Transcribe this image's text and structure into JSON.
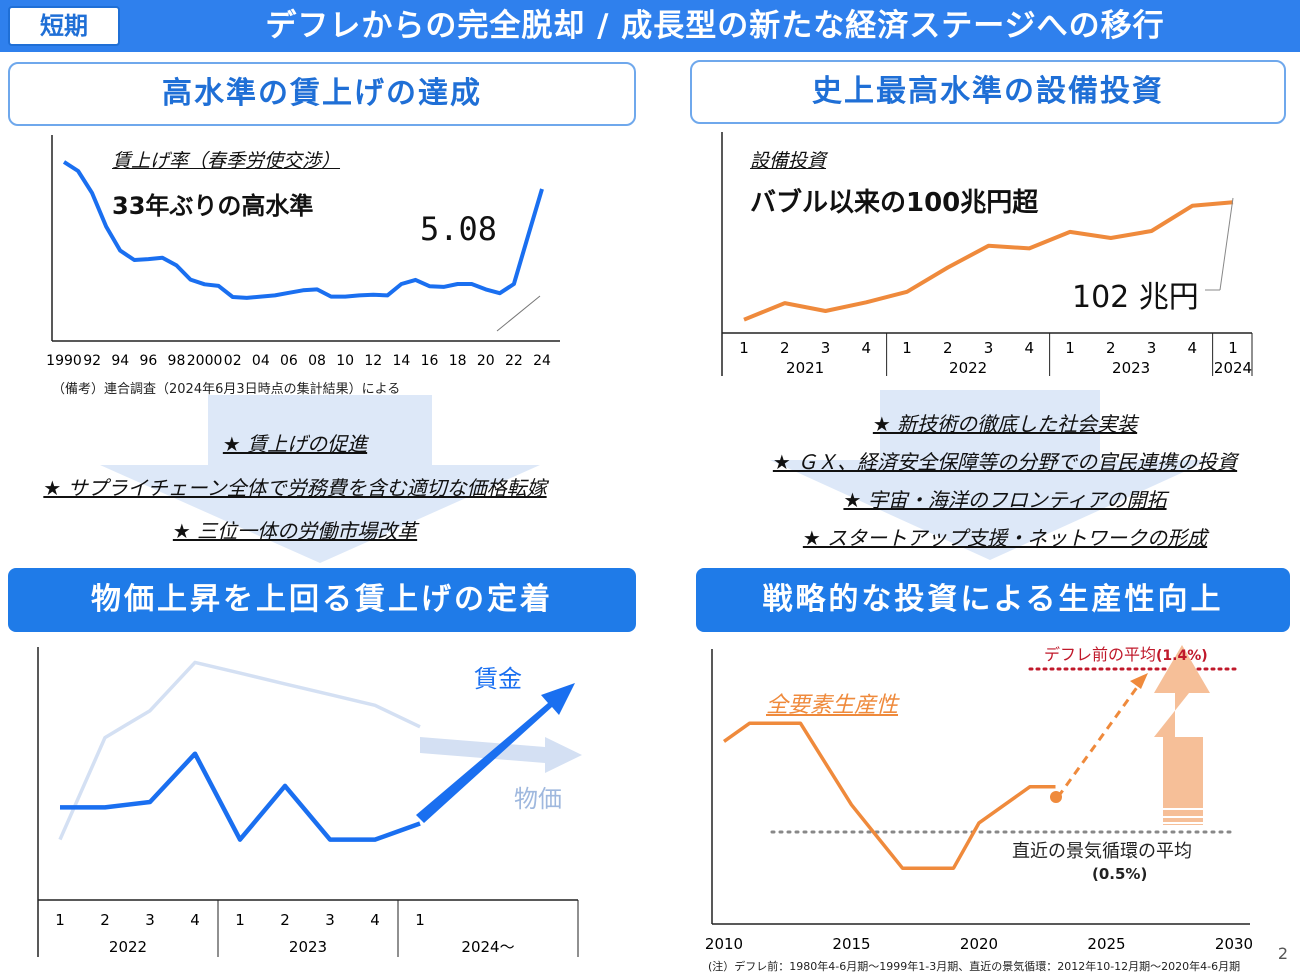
{
  "header": {
    "tag": "短期",
    "title": "デフレからの完全脱却 / 成長型の新たな経済ステージへの移行"
  },
  "left": {
    "heading": "高水準の賃上げの達成",
    "chart_caption": "賃上げ率（春季労使交渉）",
    "chart_headline": "33年ぶりの高水準",
    "chart_value_label": "5.08",
    "source_note": "（備考）連合調査（2024年6月3日時点の集計結果）による",
    "measures": [
      "★ 賃上げの促進",
      "★ サプライチェーン全体で労務費を含む適切な価格転嫁",
      "★ 三位一体の労働市場改革"
    ],
    "result": "物価上昇を上回る賃上げの定着",
    "bottom_chart_labels": {
      "wage": "賃金",
      "price": "物価"
    }
  },
  "right": {
    "heading": "史上最高水準の設備投資",
    "chart_caption": "設備投資",
    "chart_headline": "バブル以来の100兆円超",
    "chart_value_label": "102 兆円",
    "measures": [
      "★ 新技術の徹底した社会実装",
      "★ ＧＸ、経済安全保障等の分野での官民連携の投資",
      "★ 宇宙・海洋のフロンティアの開拓",
      "★ スタートアップ支援・ネットワークの形成"
    ],
    "result": "戦略的な投資による生産性向上",
    "tfp": {
      "title": "全要素生産性",
      "pre_deflation_label": "デフレ前の平均",
      "pre_deflation_value": "(1.4%)",
      "recent_cycle_label": "直近の景気循環の平均",
      "recent_cycle_value": "(0.5%)"
    },
    "footnote": "(注）デフレ前：1980年4-6月期～1999年1-3月期、直近の景気循環：2012年10-12月期～2020年4-6月期"
  },
  "page_number": "2",
  "colors": {
    "accent": "#1f7be8",
    "header": "#2f80ed",
    "wage_line": "#1a6ff0",
    "capex_line": "#ef8a3c",
    "price_line": "#c9d9f2",
    "dotted_red": "#c0192b"
  },
  "chart_data": [
    {
      "type": "line",
      "title": "賃上げ率（春季労使交渉）",
      "x_tick_labels": [
        "1990",
        "92",
        "94",
        "96",
        "98",
        "2000",
        "02",
        "04",
        "06",
        "08",
        "10",
        "12",
        "14",
        "16",
        "18",
        "20",
        "22",
        "24"
      ],
      "x": [
        1990,
        1991,
        1992,
        1993,
        1994,
        1995,
        1996,
        1997,
        1998,
        1999,
        2000,
        2001,
        2002,
        2003,
        2004,
        2005,
        2006,
        2007,
        2008,
        2009,
        2010,
        2011,
        2012,
        2013,
        2014,
        2015,
        2016,
        2017,
        2018,
        2019,
        2020,
        2021,
        2022,
        2023,
        2024
      ],
      "series": [
        {
          "values": [
            5.94,
            5.65,
            4.95,
            3.89,
            3.13,
            2.83,
            2.86,
            2.9,
            2.66,
            2.21,
            2.06,
            2.01,
            1.66,
            1.63,
            1.67,
            1.71,
            1.79,
            1.87,
            1.9,
            1.67,
            1.67,
            1.71,
            1.73,
            1.71,
            2.07,
            2.2,
            2.0,
            1.98,
            2.07,
            2.07,
            1.9,
            1.78,
            2.07,
            3.58,
            5.08
          ]
        }
      ],
      "annotations": [
        "5.08"
      ]
    },
    {
      "type": "line",
      "title": "設備投資",
      "x_tick_labels": [
        "1",
        "2",
        "3",
        "4",
        "1",
        "2",
        "3",
        "4",
        "1",
        "2",
        "3",
        "4",
        "1"
      ],
      "x_group_labels": [
        "2021",
        "2022",
        "2023",
        "2024"
      ],
      "series": [
        {
          "values": [
            88.5,
            90.4,
            89.5,
            90.5,
            91.7,
            94.5,
            97.0,
            96.7,
            98.6,
            97.9,
            98.7,
            101.6,
            102.0
          ]
        }
      ],
      "annotations": [
        "102 兆円"
      ]
    },
    {
      "type": "line",
      "x_tick_labels": [
        "1",
        "2",
        "3",
        "4",
        "1",
        "2",
        "3",
        "4",
        "1"
      ],
      "x_group_labels": [
        "2022",
        "2023",
        "2024～"
      ],
      "series": [
        {
          "name": "賃金",
          "values": [
            1.5,
            1.5,
            1.6,
            2.5,
            0.9,
            1.9,
            0.9,
            0.9,
            1.2
          ]
        },
        {
          "name": "物価",
          "values": [
            0.9,
            2.8,
            3.3,
            4.2,
            4.0,
            3.8,
            3.6,
            3.4,
            3.0
          ]
        }
      ]
    },
    {
      "type": "line",
      "title": "全要素生産性",
      "x_tick_labels": [
        "2010",
        "2015",
        "2020",
        "2025",
        "2030"
      ],
      "series": [
        {
          "name": "全要素生産性",
          "x": [
            2010,
            2011,
            2013,
            2015,
            2017,
            2019,
            2020,
            2022,
            2023
          ],
          "values": [
            1.0,
            1.1,
            1.1,
            0.65,
            0.3,
            0.3,
            0.55,
            0.75,
            0.75
          ]
        }
      ],
      "reference_lines": [
        {
          "label": "デフレ前の平均",
          "value": 1.4
        },
        {
          "label": "直近の景気循環の平均",
          "value": 0.5
        }
      ]
    }
  ]
}
